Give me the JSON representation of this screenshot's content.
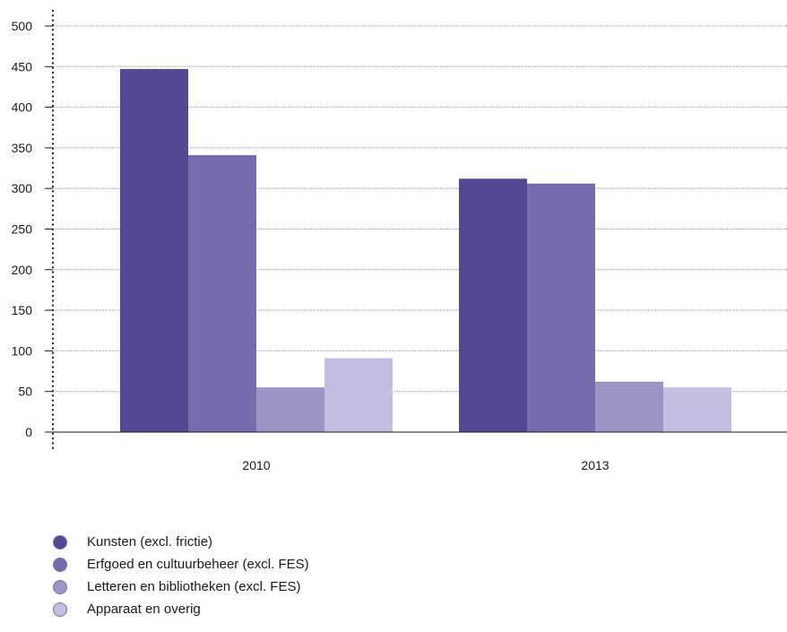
{
  "chart_data": {
    "type": "bar",
    "categories": [
      "2010",
      "2013"
    ],
    "series": [
      {
        "name": "Kunsten (excl. frictie)",
        "values": [
          447,
          312
        ],
        "color": "#524a96"
      },
      {
        "name": "Erfgoed en cultuurbeheer (excl. FES)",
        "values": [
          341,
          306
        ],
        "color": "#756bad"
      },
      {
        "name": "Letteren en bibliotheken (excl. FES)",
        "values": [
          55,
          62
        ],
        "color": "#9d93c5"
      },
      {
        "name": "Apparaat en overig",
        "values": [
          91,
          55
        ],
        "color": "#c4bee0"
      }
    ],
    "yticks": [
      "0",
      "50",
      "100",
      "150",
      "200",
      "250",
      "300",
      "350",
      "400",
      "450",
      "500"
    ],
    "ylim": [
      0,
      500
    ],
    "grid": true,
    "legend_position": "bottom-left"
  }
}
